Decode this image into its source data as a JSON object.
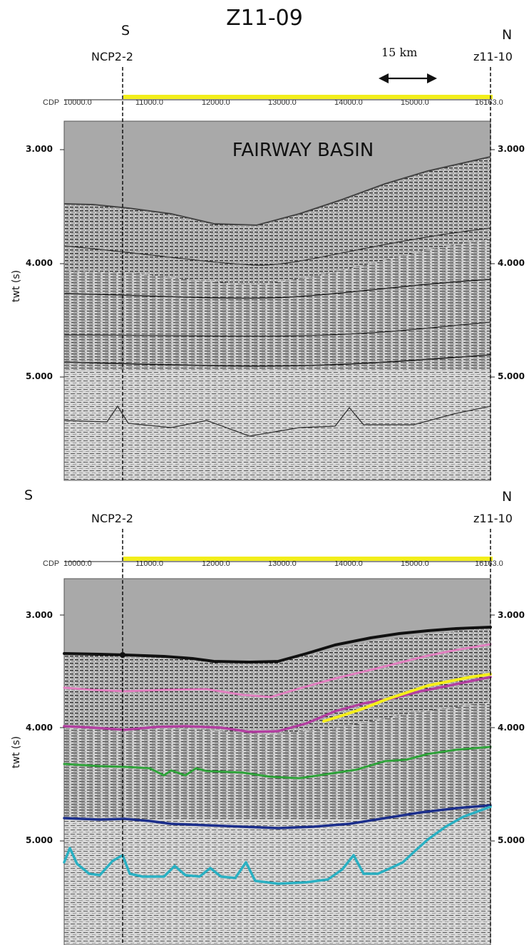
{
  "title": "Z11-09",
  "panel_top": {
    "dir_south": "S",
    "dir_north": "N",
    "well_left": "NCP2-2",
    "well_right": "z11-10",
    "scale_label": "15 km",
    "cdp_labels": [
      "CDP",
      "10000.0",
      "11000.0",
      "12000.0",
      "13000.0",
      "14000.0",
      "15000.0",
      "16163.0"
    ],
    "y_ticks_left": [
      "3.000",
      "4.000",
      "5.000"
    ],
    "y_ticks_right": [
      "3.000",
      "4.000",
      "5.000"
    ],
    "y_axis_label": "twt (s)",
    "annotation": "FAIRWAY BASIN"
  },
  "panel_bottom": {
    "dir_south": "S",
    "dir_north": "N",
    "well_left": "NCP2-2",
    "well_right": "z11-10",
    "cdp_labels": [
      "CDP",
      "10000.0",
      "11000.0",
      "12000.0",
      "13000.0",
      "14000.0",
      "15000.0",
      "16163.0"
    ],
    "y_ticks_left": [
      "3.000",
      "4.000",
      "5.000"
    ],
    "y_ticks_right": [
      "3.000",
      "4.000",
      "5.000"
    ],
    "y_axis_label": "twt (s)",
    "horizon_colors": {
      "black": "#111111",
      "pink": "#e27fc0",
      "magenta": "#b23fa0",
      "yellow": "#f5ef1a",
      "green": "#2fa33a",
      "blue": "#1c2f8c",
      "cyan": "#2ab0c2"
    }
  },
  "colors": {
    "seismic_bg": "#a9a9a9",
    "well_line": "#111111",
    "coverage_bar": "#f2ee1b"
  }
}
